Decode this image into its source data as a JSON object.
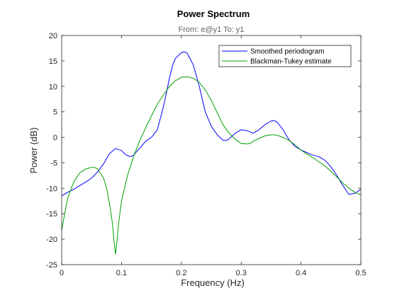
{
  "chart_data": {
    "type": "line",
    "title": "Power Spectrum",
    "subtitle": "From: e@y1  To: y1",
    "xlabel": "Frequency  (Hz)",
    "ylabel": "Power (dB)",
    "xlim": [
      0,
      0.5
    ],
    "ylim": [
      -25,
      20
    ],
    "xticks": [
      0,
      0.1,
      0.2,
      0.3,
      0.4,
      0.5
    ],
    "xtick_labels": [
      "0",
      "0.1",
      "0.2",
      "0.3",
      "0.4",
      "0.5"
    ],
    "yticks": [
      -25,
      -20,
      -15,
      -10,
      -5,
      0,
      5,
      10,
      15,
      20
    ],
    "ytick_labels": [
      "-25",
      "-20",
      "-15",
      "-10",
      "-5",
      "0",
      "5",
      "10",
      "15",
      "20"
    ],
    "grid": false,
    "legend_position": "top-right",
    "series": [
      {
        "name": "Smoothed periodogram",
        "color": "#0000ff",
        "x": [
          0,
          0.01,
          0.02,
          0.03,
          0.04,
          0.05,
          0.06,
          0.07,
          0.08,
          0.09,
          0.1,
          0.105,
          0.11,
          0.115,
          0.12,
          0.13,
          0.14,
          0.15,
          0.16,
          0.17,
          0.18,
          0.185,
          0.19,
          0.2,
          0.205,
          0.21,
          0.22,
          0.23,
          0.24,
          0.25,
          0.26,
          0.27,
          0.275,
          0.28,
          0.29,
          0.3,
          0.31,
          0.32,
          0.33,
          0.34,
          0.35,
          0.355,
          0.36,
          0.37,
          0.38,
          0.39,
          0.4,
          0.41,
          0.42,
          0.43,
          0.44,
          0.45,
          0.46,
          0.47,
          0.48,
          0.49,
          0.5
        ],
        "values": [
          -11.5,
          -10.8,
          -10.2,
          -9.5,
          -8.8,
          -8.0,
          -6.8,
          -5.2,
          -3.2,
          -2.2,
          -2.6,
          -3.2,
          -3.6,
          -3.8,
          -3.5,
          -2.2,
          -0.8,
          0.0,
          1.5,
          6.0,
          11.5,
          14.0,
          15.5,
          16.6,
          16.8,
          16.5,
          14.2,
          10.0,
          5.0,
          2.2,
          0.5,
          -0.6,
          -0.6,
          -0.3,
          0.8,
          1.5,
          1.3,
          0.8,
          1.5,
          2.5,
          3.2,
          3.3,
          3.0,
          1.5,
          -0.5,
          -1.8,
          -2.5,
          -3.0,
          -3.5,
          -3.8,
          -4.5,
          -5.8,
          -7.5,
          -9.5,
          -11.2,
          -11.0,
          -10.2
        ]
      },
      {
        "name": "Blackman-Tukey estimate",
        "color": "#00a000",
        "x": [
          0,
          0.005,
          0.01,
          0.02,
          0.03,
          0.04,
          0.05,
          0.055,
          0.06,
          0.07,
          0.075,
          0.08,
          0.085,
          0.088,
          0.09,
          0.092,
          0.095,
          0.1,
          0.11,
          0.12,
          0.13,
          0.14,
          0.15,
          0.16,
          0.17,
          0.18,
          0.19,
          0.2,
          0.21,
          0.22,
          0.23,
          0.24,
          0.25,
          0.26,
          0.27,
          0.28,
          0.29,
          0.3,
          0.31,
          0.315,
          0.32,
          0.33,
          0.34,
          0.35,
          0.355,
          0.36,
          0.37,
          0.38,
          0.39,
          0.4,
          0.41,
          0.42,
          0.43,
          0.44,
          0.45,
          0.46,
          0.47,
          0.48,
          0.49,
          0.5
        ],
        "values": [
          -18.3,
          -15.0,
          -12.0,
          -8.8,
          -7.0,
          -6.2,
          -5.9,
          -5.9,
          -6.2,
          -8.0,
          -10.0,
          -13.0,
          -17.0,
          -21.0,
          -22.9,
          -21.0,
          -17.0,
          -12.5,
          -7.5,
          -3.8,
          -0.8,
          1.8,
          4.2,
          6.5,
          8.3,
          10.0,
          11.1,
          11.8,
          11.9,
          11.6,
          10.8,
          9.3,
          7.3,
          4.8,
          2.4,
          0.8,
          -0.4,
          -1.2,
          -1.3,
          -1.2,
          -0.8,
          -0.2,
          0.3,
          0.5,
          0.5,
          0.4,
          0.0,
          -0.6,
          -1.5,
          -2.5,
          -3.3,
          -4.0,
          -4.8,
          -5.6,
          -6.7,
          -7.8,
          -9.0,
          -10.0,
          -10.8,
          -11.3
        ]
      }
    ]
  }
}
